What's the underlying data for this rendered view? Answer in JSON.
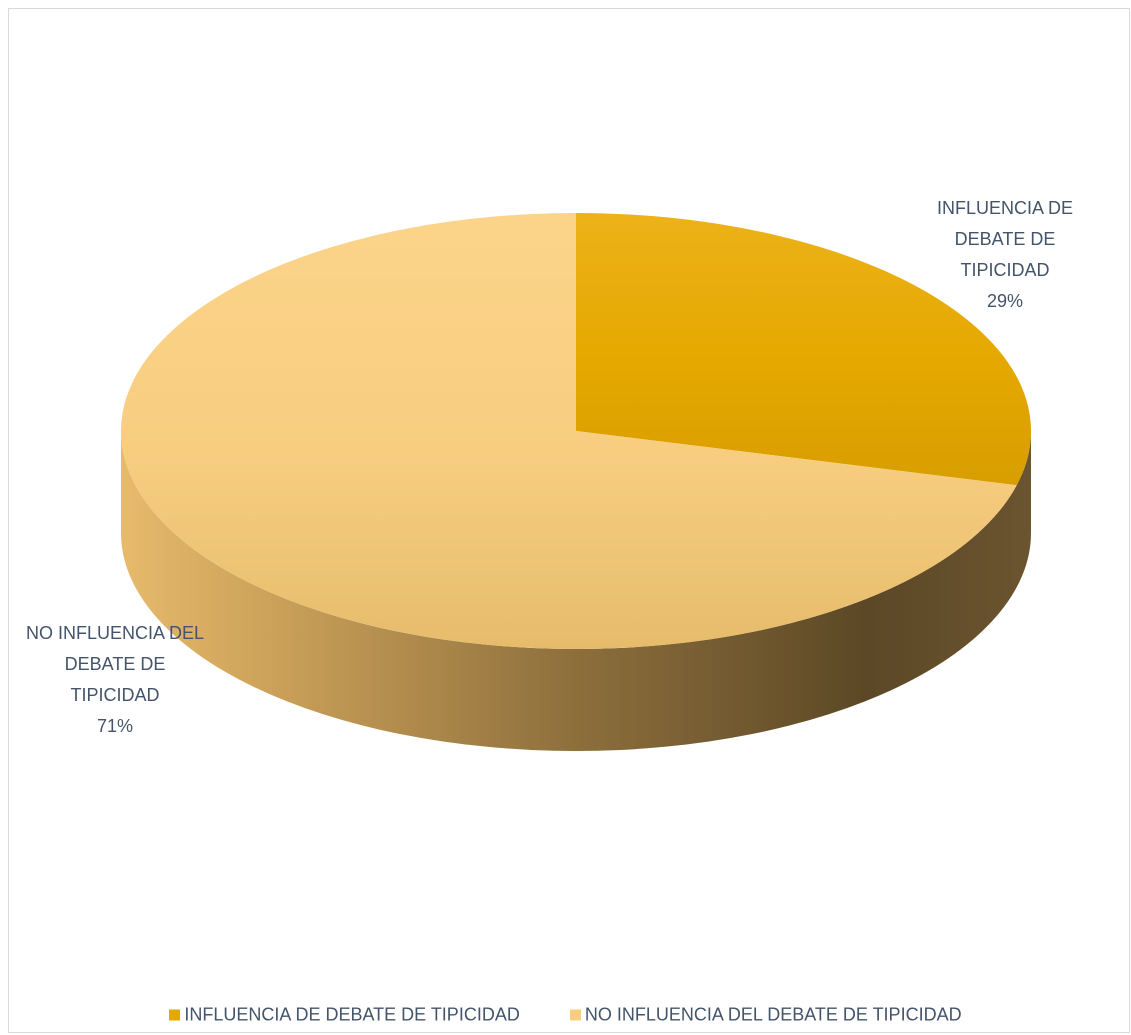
{
  "chart_data": {
    "type": "pie",
    "style": "3d",
    "title": "",
    "series": [
      {
        "values": [
          29,
          71
        ],
        "categories": [
          "INFLUENCIA DE DEBATE DE TIPICIDAD",
          "NO INFLUENCIA DEL DEBATE DE TIPICIDAD"
        ]
      }
    ],
    "slices": [
      {
        "name": "INFLUENCIA DE DEBATE DE TIPICIDAD",
        "value": 29,
        "label_lines": [
          "INFLUENCIA DE",
          "DEBATE DE",
          "TIPICIDAD",
          "29%"
        ],
        "color": "#e5a800",
        "color_light": "#ecb218",
        "color_dark": "#d89e00"
      },
      {
        "name": "NO INFLUENCIA DEL DEBATE DE TIPICIDAD",
        "value": 71,
        "label_lines": [
          "NO INFLUENCIA DEL",
          "DEBATE DE",
          "TIPICIDAD",
          "71%"
        ],
        "color": "#f8cd80",
        "color_light": "#fbd48a",
        "color_dark": "#e6bc6c"
      }
    ],
    "legend_position": "bottom",
    "legend": [
      {
        "label": "INFLUENCIA DE DEBATE DE TIPICIDAD",
        "color": "#e5a800"
      },
      {
        "label": "NO INFLUENCIA DEL DEBATE DE TIPICIDAD",
        "color": "#f8cd80"
      }
    ],
    "side_colors": [
      "#e7ba6c",
      "#c99f58",
      "#8d6f3c",
      "#5c4826",
      "#6b5430"
    ],
    "text_color": "#44546a"
  }
}
